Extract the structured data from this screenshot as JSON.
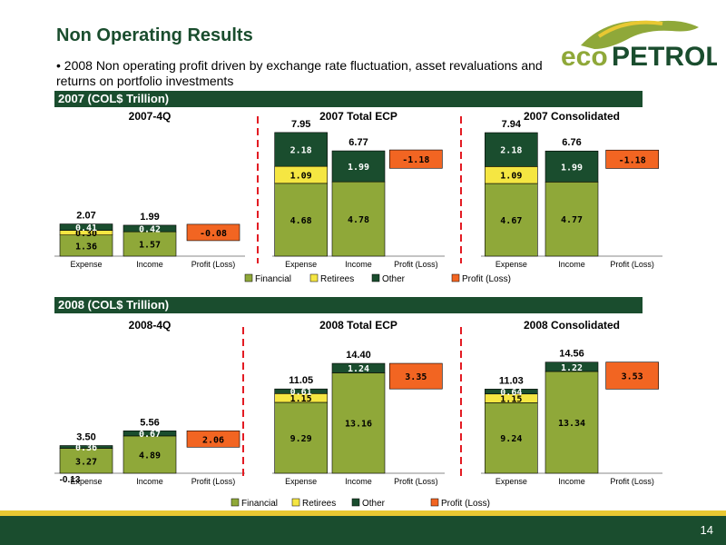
{
  "page": {
    "title": "Non Operating Results",
    "bullet": "• 2008 Non operating profit driven by exchange rate fluctuation, asset revaluations and returns on portfolio investments",
    "page_number": "14",
    "logo_text_eco": "eco",
    "logo_text_petrol": "PETROL"
  },
  "bands": {
    "y2007": "2007 (COL$ Trillion)",
    "y2008": "2008 (COL$ Trillion)"
  },
  "colors": {
    "financial": "#8fa839",
    "retirees": "#f5e642",
    "other": "#1a4d2e",
    "profit": "#f26522",
    "brand_green": "#1a4d2e",
    "brand_yellow": "#e8c832"
  },
  "chart_data": [
    {
      "type": "bar",
      "title": "2007-4Q",
      "categories": [
        "Expense",
        "Income",
        "Profit (Loss)"
      ],
      "ylim": [
        0,
        8
      ],
      "bars": [
        {
          "segments": [
            {
              "series": "Financial",
              "value": 1.36
            },
            {
              "series": "Retirees",
              "value": 0.3
            },
            {
              "series": "Other",
              "value": 0.41
            }
          ],
          "total": "2.07"
        },
        {
          "segments": [
            {
              "series": "Financial",
              "value": 1.57
            },
            {
              "series": "Other",
              "value": 0.42
            }
          ],
          "total": "1.99"
        },
        {
          "segments": [
            {
              "series": "Profit (Loss)",
              "value": -0.08
            }
          ],
          "label_override": "-0.08"
        }
      ]
    },
    {
      "type": "bar",
      "title": "2007 Total ECP",
      "categories": [
        "Expense",
        "Income",
        "Profit (Loss)"
      ],
      "ylim": [
        0,
        8
      ],
      "bars": [
        {
          "segments": [
            {
              "series": "Financial",
              "value": 4.68
            },
            {
              "series": "Retirees",
              "value": 1.09
            },
            {
              "series": "Other",
              "value": 2.18
            }
          ],
          "total": "7.95"
        },
        {
          "segments": [
            {
              "series": "Financial",
              "value": 4.78
            },
            {
              "series": "Other",
              "value": 1.99
            }
          ],
          "total": "6.77"
        },
        {
          "segments": [
            {
              "series": "Profit (Loss)",
              "value": -1.18
            }
          ],
          "label_override": "-1.18"
        }
      ]
    },
    {
      "type": "bar",
      "title": "2007 Consolidated",
      "categories": [
        "Expense",
        "Income",
        "Profit (Loss)"
      ],
      "ylim": [
        0,
        8
      ],
      "bars": [
        {
          "segments": [
            {
              "series": "Financial",
              "value": 4.67
            },
            {
              "series": "Retirees",
              "value": 1.09
            },
            {
              "series": "Other",
              "value": 2.18
            }
          ],
          "total": "7.94"
        },
        {
          "segments": [
            {
              "series": "Financial",
              "value": 4.77
            },
            {
              "series": "Other",
              "value": 1.99
            }
          ],
          "total": "6.76"
        },
        {
          "segments": [
            {
              "series": "Profit (Loss)",
              "value": -1.18
            }
          ],
          "label_override": "-1.18"
        }
      ]
    },
    {
      "type": "bar",
      "title": "2008-4Q",
      "categories": [
        "Expense",
        "Income",
        "Profit (Loss)"
      ],
      "ylim": [
        0,
        15
      ],
      "bars": [
        {
          "segments": [
            {
              "series": "Financial",
              "value": 3.27
            },
            {
              "series": "Other",
              "value": 0.36
            }
          ],
          "total": "3.50",
          "below": "-0.13"
        },
        {
          "segments": [
            {
              "series": "Financial",
              "value": 4.89
            },
            {
              "series": "Other",
              "value": 0.67
            }
          ],
          "total": "5.56"
        },
        {
          "segments": [
            {
              "series": "Profit (Loss)",
              "value": 2.06
            }
          ],
          "label_override": "2.06"
        }
      ]
    },
    {
      "type": "bar",
      "title": "2008 Total ECP",
      "categories": [
        "Expense",
        "Income",
        "Profit (Loss)"
      ],
      "ylim": [
        0,
        15
      ],
      "bars": [
        {
          "segments": [
            {
              "series": "Financial",
              "value": 9.29
            },
            {
              "series": "Retirees",
              "value": 1.15
            },
            {
              "series": "Other",
              "value": 0.61
            }
          ],
          "total": "11.05"
        },
        {
          "segments": [
            {
              "series": "Financial",
              "value": 13.16
            },
            {
              "series": "Other",
              "value": 1.24
            }
          ],
          "total": "14.40"
        },
        {
          "segments": [
            {
              "series": "Profit (Loss)",
              "value": 3.35
            }
          ],
          "label_override": "3.35"
        }
      ]
    },
    {
      "type": "bar",
      "title": "2008 Consolidated",
      "categories": [
        "Expense",
        "Income",
        "Profit (Loss)"
      ],
      "ylim": [
        0,
        15
      ],
      "bars": [
        {
          "segments": [
            {
              "series": "Financial",
              "value": 9.24
            },
            {
              "series": "Retirees",
              "value": 1.15
            },
            {
              "series": "Other",
              "value": 0.64
            }
          ],
          "total": "11.03"
        },
        {
          "segments": [
            {
              "series": "Financial",
              "value": 13.34
            },
            {
              "series": "Other",
              "value": 1.22
            }
          ],
          "total": "14.56"
        },
        {
          "segments": [
            {
              "series": "Profit (Loss)",
              "value": 3.53
            }
          ],
          "label_override": "3.53"
        }
      ]
    }
  ],
  "legends": {
    "y2007": [
      {
        "key": "financial",
        "label": "Financial"
      },
      {
        "key": "retirees",
        "label": "Retirees"
      },
      {
        "key": "other",
        "label": "Other"
      },
      {
        "key": "profit",
        "label": "Profit (Loss)"
      }
    ],
    "y2008": [
      {
        "key": "financial",
        "label": "Financial"
      },
      {
        "key": "retirees",
        "label": "Retirees"
      },
      {
        "key": "other",
        "label": "Other"
      },
      {
        "key": "profit",
        "label": "Profit (Loss)"
      }
    ]
  }
}
